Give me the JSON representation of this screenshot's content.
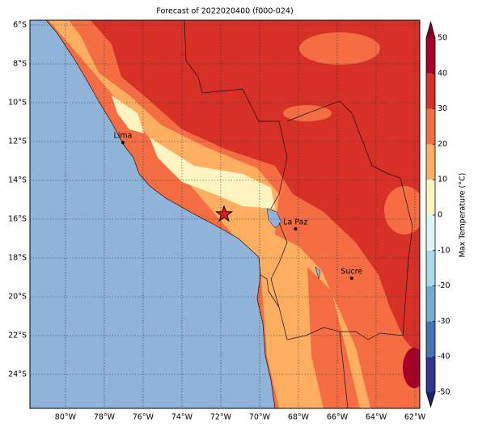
{
  "title": "Forecast of 2022020400 (f000-024)",
  "map": {
    "lonlim": [
      -81.83,
      -61.75
    ],
    "latlim": [
      -25.75,
      -5.75
    ],
    "lon_ticks": [
      {
        "value": -80,
        "label": "80°W"
      },
      {
        "value": -78,
        "label": "78°W"
      },
      {
        "value": -76,
        "label": "76°W"
      },
      {
        "value": -74,
        "label": "74°W"
      },
      {
        "value": -72,
        "label": "72°W"
      },
      {
        "value": -70,
        "label": "70°W"
      },
      {
        "value": -68,
        "label": "68°W"
      },
      {
        "value": -66,
        "label": "66°W"
      },
      {
        "value": -64,
        "label": "64°W"
      },
      {
        "value": -62,
        "label": "62°W"
      }
    ],
    "lat_ticks": [
      {
        "value": -6,
        "label": "6°S"
      },
      {
        "value": -8,
        "label": "8°S"
      },
      {
        "value": -10,
        "label": "10°S"
      },
      {
        "value": -12,
        "label": "12°S"
      },
      {
        "value": -14,
        "label": "14°S"
      },
      {
        "value": -16,
        "label": "16°S"
      },
      {
        "value": -18,
        "label": "18°S"
      },
      {
        "value": -20,
        "label": "20°S"
      },
      {
        "value": -22,
        "label": "22°S"
      },
      {
        "value": -24,
        "label": "24°S"
      }
    ],
    "cities": [
      {
        "name": "Lima",
        "lon": -77.04,
        "lat": -12.05
      },
      {
        "name": "La Paz",
        "lon": -68.15,
        "lat": -16.5
      },
      {
        "name": "Sucre",
        "lon": -65.26,
        "lat": -19.04
      }
    ],
    "marker": {
      "lon": -71.83,
      "lat": -15.75,
      "color": "#e41a1c"
    }
  },
  "colorbar": {
    "label": "Max Temperature (°C)",
    "lim": [
      -50,
      50
    ],
    "ticks": [
      -50,
      -40,
      -30,
      -20,
      -10,
      0,
      10,
      20,
      30,
      40,
      50
    ],
    "colors": [
      "#313695",
      "#4575b4",
      "#74add1",
      "#abd9e9",
      "#e0f3f8",
      "#fef5c0",
      "#fdae61",
      "#f46d43",
      "#d73027",
      "#a50026"
    ],
    "under": "#1f2170",
    "over": "#8b0021"
  }
}
